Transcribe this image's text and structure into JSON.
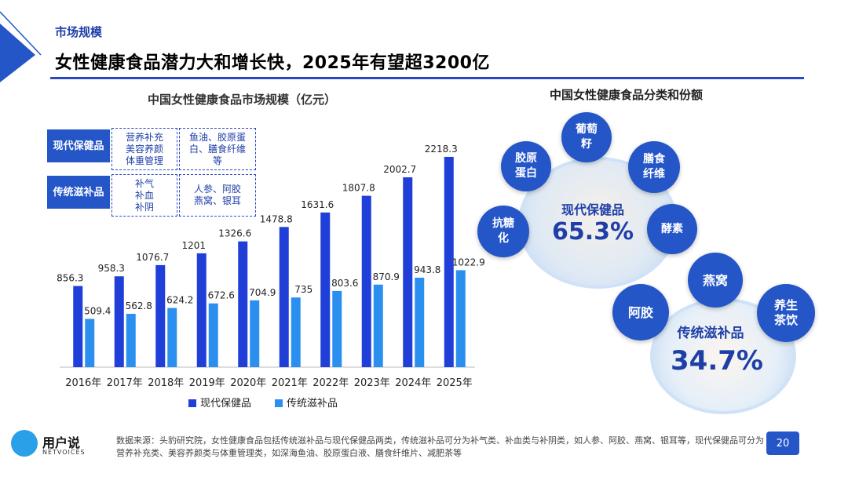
{
  "header": {
    "section": "市场规模",
    "title": "女性健康食品潜力大和增长快，2025年有望超3200亿"
  },
  "chart_data": {
    "type": "bar",
    "title": "中国女性健康食品市场规模（亿元）",
    "categories": [
      "2016年",
      "2017年",
      "2018年",
      "2019年",
      "2020年",
      "2021年",
      "2022年",
      "2023年",
      "2024年",
      "2025年"
    ],
    "series": [
      {
        "name": "现代保健品",
        "color": "#1f3fd8",
        "values": [
          856.3,
          958.3,
          1076.7,
          1201,
          1326.6,
          1478.8,
          1631.6,
          1807.8,
          2002.7,
          2218.3
        ],
        "labels": [
          "856.3",
          "958.3",
          "1076.7",
          "1201",
          "1326.6",
          "1478.8",
          "1631.6",
          "1807.8",
          "2002.7",
          "2218.3"
        ]
      },
      {
        "name": "传统滋补品",
        "color": "#2b8ff0",
        "values": [
          509.4,
          562.8,
          624.2,
          672.6,
          704.9,
          735,
          803.6,
          870.9,
          943.8,
          1022.9
        ],
        "labels": [
          "509.4",
          "562.8",
          "624.2",
          "672.6",
          "704.9",
          "735",
          "803.6",
          "870.9",
          "943.8",
          "1022.9"
        ]
      }
    ],
    "ylim": [
      0,
      2400
    ],
    "legend_position": "bottom",
    "grid": false
  },
  "categories_table": [
    {
      "label": "现代保健品",
      "box1": "营养补充\n美容养颜\n体重管理",
      "box2": "鱼油、胶原蛋\n白、膳食纤维\n等"
    },
    {
      "label": "传统滋补品",
      "box1": "补气\n补血\n补阴",
      "box2": "人参、阿胶\n燕窝、银耳"
    }
  ],
  "share": {
    "title": "中国女性健康食品分类和份额",
    "modern": {
      "label": "现代保健品",
      "percent": "65.3%",
      "items": [
        "胶原\n蛋白",
        "葡萄\n籽",
        "膳食\n纤维",
        "抗糖\n化",
        "酵素"
      ]
    },
    "traditional": {
      "label": "传统滋补品",
      "percent": "34.7%",
      "items": [
        "燕窝",
        "阿胶",
        "养生\n茶饮"
      ]
    }
  },
  "footer": {
    "source": "数据来源：头豹研究院，女性健康食品包括传统滋补品与现代保健品两类，传统滋补品可分为补气类、补血类与补阴类，如人参、阿胶、燕窝、银耳等，现代保健品可分为营养补充类、美容养颜类与体重管理类，如深海鱼油、胶原蛋白液、膳食纤维片、减肥茶等",
    "page": "20",
    "brand": "用户说",
    "brand_sub": "NETVOICES"
  }
}
